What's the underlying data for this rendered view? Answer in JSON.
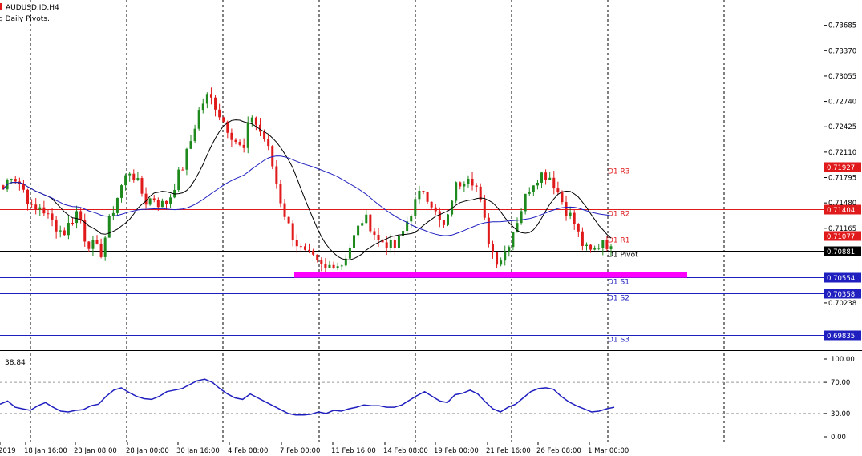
{
  "header": {
    "symbol_line": "AUDUSD.ID,H4",
    "indicator_line": "g Daily Pivots."
  },
  "rsi_label": "38.84",
  "colors": {
    "bull": "#1e8a1e",
    "bear": "#e0191b",
    "ma_fast": "#000000",
    "ma_slow": "#1f1fbf",
    "resistance": "#e0191b",
    "support": "#1f1fbf",
    "pivot": "#000000",
    "highlight": "#ff00ff",
    "rsi": "#1f1fbf"
  },
  "chart_data": [
    {
      "type": "candlestick",
      "title": "",
      "ylim": [
        0.6965,
        0.74
      ],
      "y_ticks": [
        "0.73685",
        "0.73370",
        "0.73055",
        "0.72740",
        "0.72425",
        "0.72110",
        "0.71795",
        "0.71480",
        "0.71165",
        "0.70238"
      ],
      "x_ticks": [
        "2019",
        "18 Jan 16:00",
        "23 Jan 08:00",
        "28 Jan 00:00",
        "30 Jan 16:00",
        "4 Feb 08:00",
        "7 Feb 00:00",
        "11 Feb 16:00",
        "14 Feb 08:00",
        "19 Feb 00:00",
        "21 Feb 16:00",
        "26 Feb 08:00",
        "1 Mar 00:00"
      ],
      "pivot_levels": [
        {
          "name": "D1 R3",
          "value": "0.71927",
          "kind": "resistance"
        },
        {
          "name": "D1 R2",
          "value": "0.71404",
          "kind": "resistance"
        },
        {
          "name": "D1 R1",
          "value": "0.71077",
          "kind": "resistance"
        },
        {
          "name": "D1 Pivot",
          "value": "0.70881",
          "kind": "pivot"
        },
        {
          "name": "D1 S1",
          "value": "0.70554",
          "kind": "support"
        },
        {
          "name": "D1 S2",
          "value": "0.70358",
          "kind": "support"
        },
        {
          "name": "D1 S3",
          "value": "0.69835",
          "kind": "support"
        }
      ],
      "support_zone": 0.7058,
      "close_path": [
        0.7165,
        0.7185,
        0.7175,
        0.716,
        0.7135,
        0.7145,
        0.713,
        0.712,
        0.711,
        0.7125,
        0.714,
        0.71,
        0.7095,
        0.7085,
        0.712,
        0.715,
        0.7175,
        0.719,
        0.717,
        0.715,
        0.7155,
        0.7145,
        0.715,
        0.7175,
        0.7195,
        0.7225,
        0.726,
        0.728,
        0.7275,
        0.7255,
        0.724,
        0.7225,
        0.721,
        0.726,
        0.724,
        0.7225,
        0.719,
        0.715,
        0.712,
        0.71,
        0.7085,
        0.708,
        0.707,
        0.7065,
        0.7075,
        0.707,
        0.709,
        0.711,
        0.713,
        0.712,
        0.71,
        0.71,
        0.709,
        0.7105,
        0.713,
        0.715,
        0.7165,
        0.715,
        0.7125,
        0.7115,
        0.7165,
        0.7175,
        0.7185,
        0.717,
        0.713,
        0.709,
        0.7075,
        0.709,
        0.7115,
        0.714,
        0.7165,
        0.718,
        0.7185,
        0.718,
        0.716,
        0.714,
        0.7125,
        0.71,
        0.7085,
        0.709,
        0.7105,
        0.7088
      ]
    },
    {
      "type": "line",
      "title": "RSI",
      "ylim": [
        0,
        100
      ],
      "y_ticks": [
        "100.00",
        "70.00",
        "30.00",
        "0.00"
      ],
      "values": [
        42,
        46,
        38,
        36,
        34,
        40,
        44,
        38,
        33,
        32,
        34,
        35,
        40,
        42,
        52,
        60,
        63,
        57,
        52,
        49,
        48,
        52,
        58,
        60,
        62,
        67,
        72,
        74,
        70,
        62,
        55,
        50,
        48,
        55,
        50,
        45,
        40,
        35,
        30,
        28,
        28,
        29,
        32,
        30,
        34,
        33,
        36,
        38,
        41,
        40,
        40,
        38,
        38,
        41,
        47,
        53,
        58,
        52,
        46,
        44,
        54,
        56,
        60,
        55,
        45,
        36,
        32,
        38,
        42,
        50,
        58,
        62,
        63,
        61,
        52,
        45,
        40,
        36,
        32,
        33,
        36,
        38
      ]
    }
  ]
}
